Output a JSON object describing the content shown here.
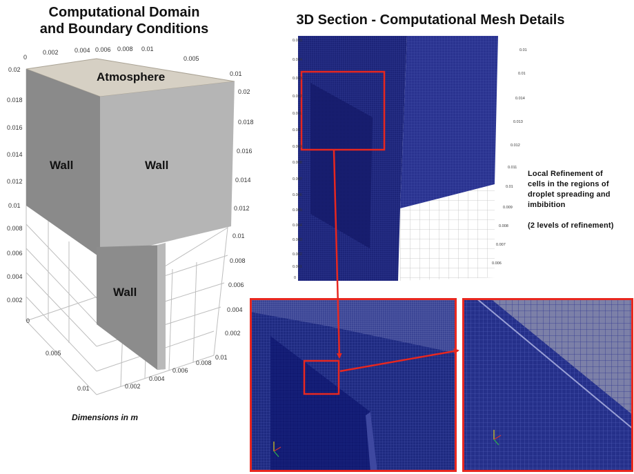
{
  "left_panel": {
    "title_line1": "Computational Domain",
    "title_line2": "and Boundary Conditions",
    "top_face_label": "Atmosphere",
    "left_wall_label": "Wall",
    "front_wall_label": "Wall",
    "lower_wall_label": "Wall",
    "dimensions_note": "Dimensions in m",
    "top_axis_ticks": [
      "0",
      "0.002",
      "0.004",
      "0.006",
      "0.008",
      "0.01"
    ],
    "top_right_axis_ticks": [
      "0.005",
      "0.01"
    ],
    "left_axis_ticks": [
      "0.02",
      "0.018",
      "0.016",
      "0.014",
      "0.012",
      "0.01",
      "0.008",
      "0.006",
      "0.004",
      "0.002",
      "0"
    ],
    "right_axis_ticks": [
      "0.02",
      "0.018",
      "0.016",
      "0.014",
      "0.012",
      "0.01",
      "0.008",
      "0.006",
      "0.004",
      "0.002",
      "0.01"
    ],
    "bottom_left_ticks": [
      "0.005",
      "0.01"
    ],
    "bottom_front_ticks": [
      "0.002",
      "0.004",
      "0.006",
      "0.008"
    ],
    "colors": {
      "top_face": "#d6d0c4",
      "side_face_dark": "#8a8a8a",
      "side_face_light": "#b5b5b5",
      "lower_wall": "#8c8c8c"
    }
  },
  "right_panel": {
    "title": "3D Section - Computational Mesh Details",
    "refinement_note_line1": "Local Refinement of",
    "refinement_note_line2": "cells in the regions of",
    "refinement_note_line3": "droplet spreading and",
    "refinement_note_line4": "imbibition",
    "refinement_levels": "(2 levels of refinement)",
    "mesh_left_ticks": [
      "0.015",
      "0.014",
      "0.013",
      "0.012",
      "0.011",
      "0.01",
      "0.009",
      "0.008",
      "0.007",
      "0.006",
      "0.005",
      "0.004",
      "0.003",
      "0.002",
      "0.001",
      "0"
    ],
    "mesh_right_ticks": [
      "0.01",
      "0.01",
      "0.014",
      "0.013",
      "0.012",
      "0.011",
      "0.01",
      "0.009",
      "0.008",
      "0.007",
      "0.006"
    ],
    "colors": {
      "mesh": "#1c2478",
      "mesh_fine": "#10165e",
      "highlight": "#e8271f"
    }
  }
}
